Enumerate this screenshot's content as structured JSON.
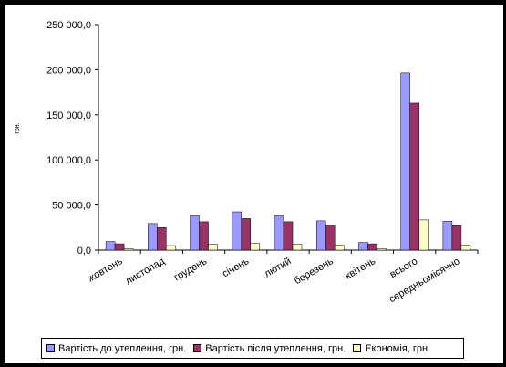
{
  "chart_data": {
    "type": "bar",
    "title": "",
    "xlabel": "",
    "ylabel": "грн.",
    "ylim": [
      0,
      250000
    ],
    "yticks": [
      "0,0",
      "50 000,0",
      "100 000,0",
      "150 000,0",
      "200 000,0",
      "250 000,0"
    ],
    "ytick_values": [
      0,
      50000,
      100000,
      150000,
      200000,
      250000
    ],
    "categories": [
      "жовтень",
      "листопад",
      "грудень",
      "січень",
      "лютий",
      "березень",
      "квітень",
      "всього",
      "середньомісячно"
    ],
    "series": [
      {
        "name": "Вартість до утеплення, грн.",
        "color": "#9999ff",
        "values": [
          9500,
          29500,
          38000,
          42500,
          38000,
          32500,
          8500,
          196500,
          32000
        ]
      },
      {
        "name": "Вартість після утеплення, грн.",
        "color": "#993366",
        "values": [
          7000,
          25000,
          31500,
          35000,
          31500,
          27500,
          7000,
          163000,
          27000
        ]
      },
      {
        "name": "Економія, грн.",
        "color": "#ffffcc",
        "values": [
          1500,
          5000,
          6500,
          7500,
          6500,
          5500,
          1500,
          33500,
          5500
        ]
      }
    ],
    "grid": false,
    "legend_position": "bottom"
  },
  "colors": {
    "background": "#ffffff",
    "outer_background": "#000000",
    "axis": "#000000"
  }
}
